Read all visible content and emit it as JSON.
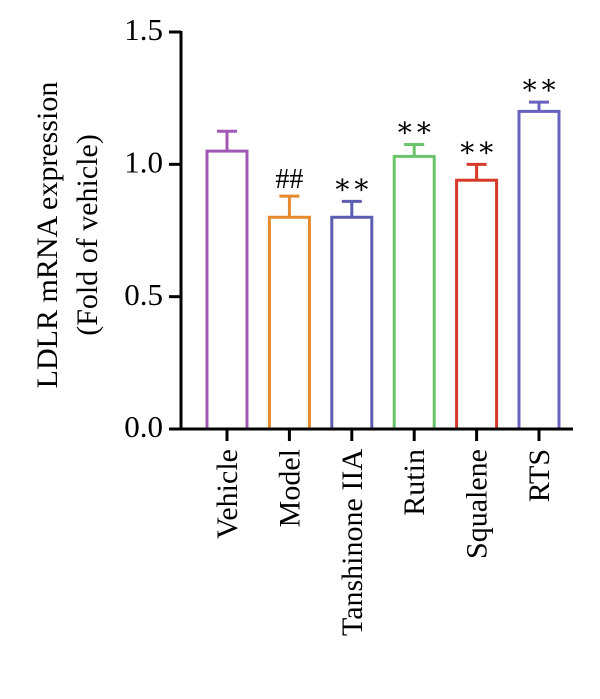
{
  "chart_data": {
    "type": "bar",
    "title": "",
    "ylabel_lines": [
      "LDLR mRNA expression",
      "(Fold of vehicle)"
    ],
    "xlabel": "",
    "ylim": [
      0,
      1.5
    ],
    "yticks": [
      "0.0",
      "0.5",
      "1.0",
      "1.5"
    ],
    "ytick_values": [
      0,
      0.5,
      1.0,
      1.5
    ],
    "grid": false,
    "categories": [
      "Vehicle",
      "Model",
      "Tanshinone IIA",
      "Rutin",
      "Squalene",
      "RTS"
    ],
    "values": [
      1.05,
      0.8,
      0.8,
      1.03,
      0.94,
      1.2
    ],
    "errors": [
      0.075,
      0.08,
      0.06,
      0.045,
      0.06,
      0.035
    ],
    "annotations": [
      "",
      "##",
      "∗∗",
      "∗∗",
      "∗∗",
      "∗∗"
    ],
    "colors": [
      "#a357b5",
      "#e58a2e",
      "#5c5db1",
      "#69c46b",
      "#d63a2b",
      "#6a62c0"
    ]
  }
}
